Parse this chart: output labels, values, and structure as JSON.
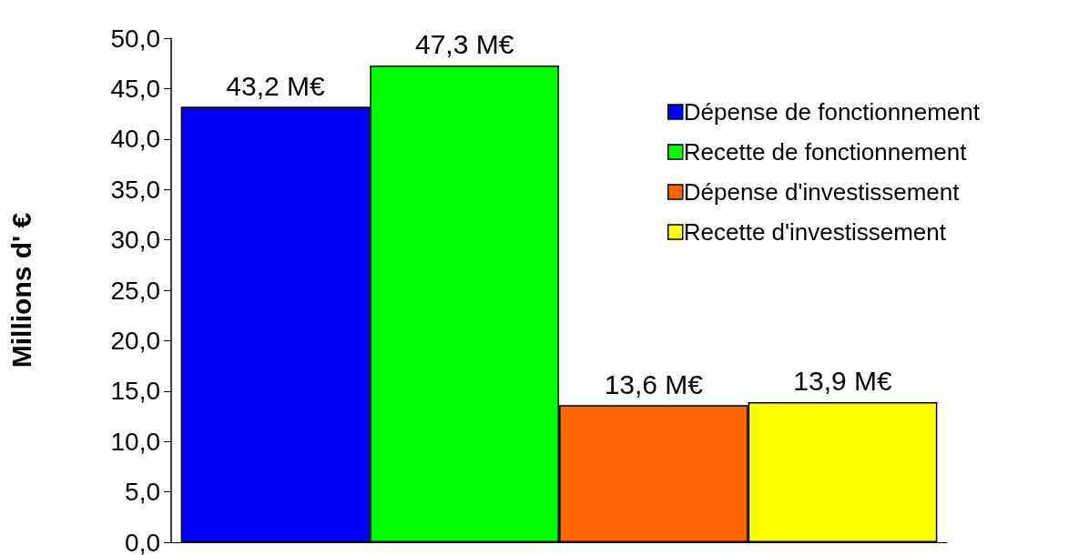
{
  "chart_data": {
    "type": "bar",
    "ylabel": "Millions d' €",
    "categories": [
      null
    ],
    "series": [
      {
        "name": "Dépense de fonctionnement",
        "color": "#0000ff",
        "values": [
          43.2
        ],
        "value_labels": [
          "43,2 M€"
        ]
      },
      {
        "name": "Recette de fonctionnement",
        "color": "#00ff00",
        "values": [
          47.3
        ],
        "value_labels": [
          "47,3 M€"
        ]
      },
      {
        "name": "Dépense d'investissement",
        "color": "#ff6600",
        "values": [
          13.6
        ],
        "value_labels": [
          "13,6 M€"
        ]
      },
      {
        "name": "Recette d'investissement",
        "color": "#ffff00",
        "values": [
          13.9
        ],
        "value_labels": [
          "13,9 M€"
        ]
      }
    ],
    "ylim": [
      0,
      50
    ],
    "yticks": [
      {
        "value": 0,
        "label": "0,0"
      },
      {
        "value": 5,
        "label": "5,0"
      },
      {
        "value": 10,
        "label": "10,0"
      },
      {
        "value": 15,
        "label": "15,0"
      },
      {
        "value": 20,
        "label": "20,0"
      },
      {
        "value": 25,
        "label": "25,0"
      },
      {
        "value": 30,
        "label": "30,0"
      },
      {
        "value": 35,
        "label": "35,0"
      },
      {
        "value": 40,
        "label": "40,0"
      },
      {
        "value": 45,
        "label": "45,0"
      },
      {
        "value": 50,
        "label": "50,0"
      }
    ],
    "grid": false,
    "legend": "right"
  }
}
